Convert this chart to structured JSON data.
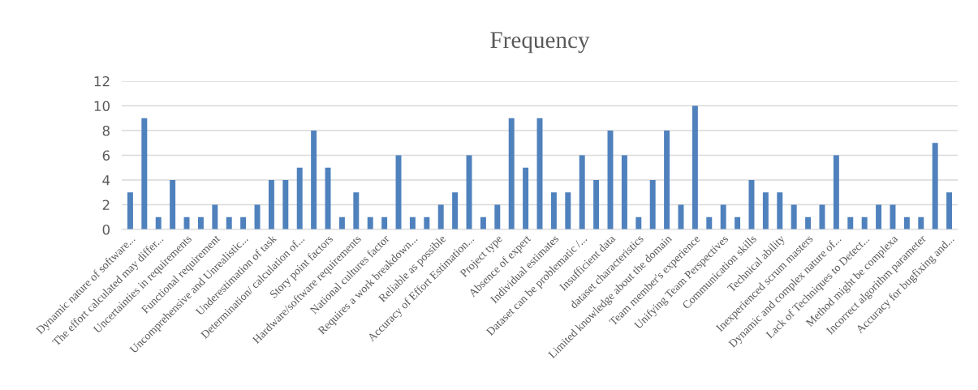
{
  "chart_data": {
    "type": "bar",
    "title": "Frequency",
    "categories": [
      "Dynamic nature of software...",
      null,
      "The effort calculated may differ...",
      null,
      "Uncertainties in requirements",
      null,
      "Functional requirement",
      null,
      "Uncomprehensive and Unrealistic...",
      null,
      "Underestimation of task",
      null,
      "Determination/ calculation of...",
      null,
      "Story point factors",
      null,
      "Hardware/software requirements",
      null,
      "National cultures factor",
      null,
      "Requires a work breakdown...",
      null,
      "Reliable as possible",
      null,
      "Accuracy of Effort Estimation...",
      null,
      "Project type",
      null,
      "Absence of expert",
      null,
      "Individual estimates",
      null,
      "Dataset can be problematic /...",
      null,
      "Insufficient data",
      null,
      "dataset characteristics",
      null,
      "Limited knowledge about the domain",
      null,
      "Team member's experience",
      null,
      "Unifying Team Perspectives",
      null,
      "Communication skills",
      null,
      "Technical ability",
      null,
      "Inexperienced scrum masters",
      null,
      "Dynamic and complex nature of...",
      null,
      "Lack of Techniques to Detect...",
      null,
      "Method might be complexa",
      null,
      "Incorrect algorithm parameter",
      null,
      "Accuracy for bugfixing and..."
    ],
    "values": [
      3,
      9,
      1,
      4,
      1,
      1,
      2,
      1,
      1,
      2,
      4,
      4,
      5,
      8,
      5,
      1,
      3,
      1,
      1,
      6,
      1,
      1,
      2,
      3,
      6,
      1,
      2,
      9,
      5,
      9,
      3,
      3,
      6,
      4,
      8,
      6,
      1,
      4,
      8,
      2,
      10,
      1,
      2,
      1,
      4,
      3,
      3,
      2,
      1,
      2,
      6,
      1,
      1,
      2,
      2,
      1,
      1,
      7,
      3
    ],
    "color": "#4f81bd",
    "ylim": [
      0,
      12
    ],
    "yticks": [
      0,
      2,
      4,
      6,
      8,
      10,
      12
    ],
    "grid": "y"
  }
}
